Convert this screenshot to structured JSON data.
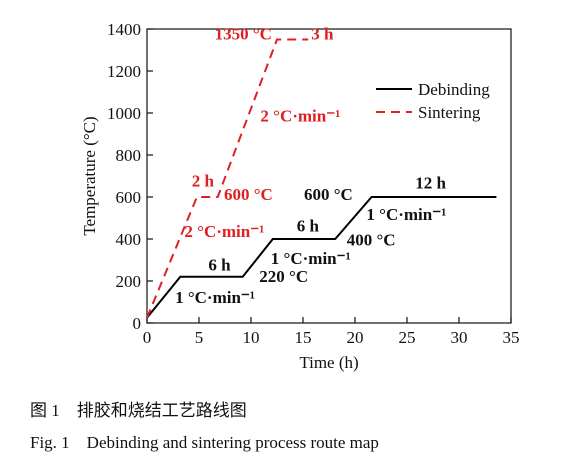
{
  "chart_data": {
    "type": "line",
    "xlabel": "Time (h)",
    "ylabel": "Temperature (°C)",
    "xlim": [
      0,
      35
    ],
    "ylim": [
      0,
      1400
    ],
    "xticks": [
      0,
      5,
      10,
      15,
      20,
      25,
      30,
      35
    ],
    "yticks": [
      0,
      200,
      400,
      600,
      800,
      1000,
      1200,
      1400
    ],
    "series": [
      {
        "name": "Debinding",
        "color": "#000000",
        "style": "solid",
        "x": [
          0,
          3.2,
          9.2,
          12.1,
          18.1,
          21.6,
          33.6
        ],
        "y": [
          25,
          220,
          220,
          400,
          400,
          600,
          600
        ]
      },
      {
        "name": "Sintering",
        "color": "#e02020",
        "style": "dashed",
        "x": [
          0,
          4.8,
          6.8,
          12.5,
          15.5
        ],
        "y": [
          25,
          600,
          600,
          1350,
          1350
        ]
      }
    ],
    "legend": {
      "position": "top-right"
    },
    "annotations": [
      {
        "text": "1350 °C",
        "color": "#e02020",
        "x": 6.5,
        "y": 1350
      },
      {
        "text": "3 h",
        "color": "#e02020",
        "x": 15.8,
        "y": 1350
      },
      {
        "text": "2 °C·min⁻¹",
        "color": "#e02020",
        "x": 10.9,
        "y": 960
      },
      {
        "text": "2 h",
        "color": "#e02020",
        "x": 4.3,
        "y": 650
      },
      {
        "text": "600 °C",
        "color": "#e02020",
        "x": 7.4,
        "y": 585
      },
      {
        "text": "2 °C·min⁻¹",
        "color": "#e02020",
        "x": 3.6,
        "y": 410
      },
      {
        "text": "600 °C",
        "color": "#111111",
        "x": 15.1,
        "y": 585
      },
      {
        "text": "12 h",
        "color": "#111111",
        "x": 25.8,
        "y": 640
      },
      {
        "text": "1 °C·min⁻¹",
        "color": "#111111",
        "x": 21.1,
        "y": 490
      },
      {
        "text": "6 h",
        "color": "#111111",
        "x": 14.4,
        "y": 435
      },
      {
        "text": "400 °C",
        "color": "#111111",
        "x": 19.2,
        "y": 370
      },
      {
        "text": "1 °C·min⁻¹",
        "color": "#111111",
        "x": 11.9,
        "y": 280
      },
      {
        "text": "6 h",
        "color": "#111111",
        "x": 5.9,
        "y": 250
      },
      {
        "text": "220 °C",
        "color": "#111111",
        "x": 10.8,
        "y": 195
      },
      {
        "text": "1 °C·min⁻¹",
        "color": "#111111",
        "x": 2.7,
        "y": 95
      }
    ]
  },
  "caption": {
    "cn": "图 1　排胶和烧结工艺路线图",
    "en": "Fig. 1　Debinding and sintering process route map"
  }
}
